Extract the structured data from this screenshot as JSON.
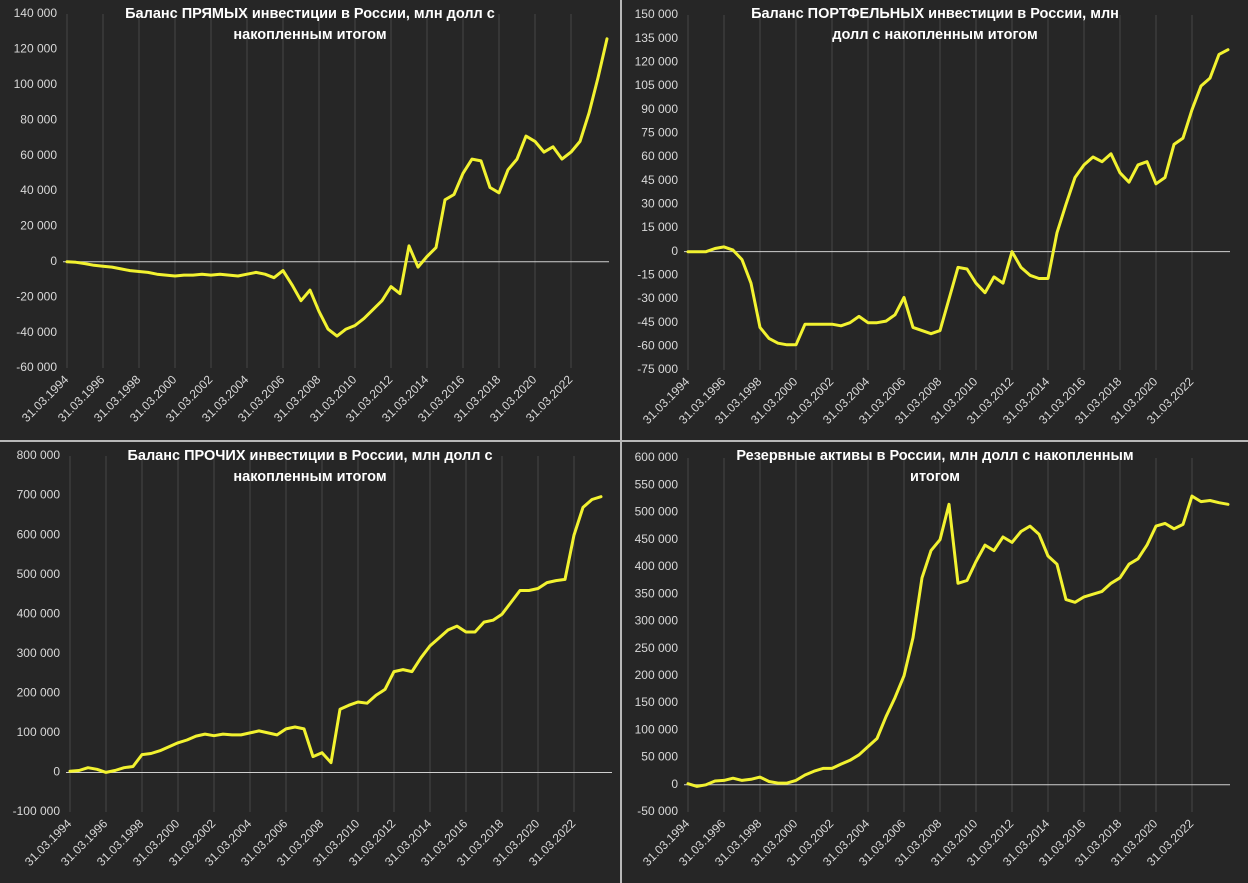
{
  "chart_data": [
    {
      "type": "line",
      "title": "Баланс ПРЯМЫХ инвестиции в России, млн долл с накопленным итогом",
      "color": "#f2f230",
      "xgrid": true,
      "categories": [
        "31.03.1994",
        null,
        null,
        null,
        "31.03.1996",
        null,
        null,
        null,
        "31.03.1998",
        null,
        null,
        null,
        "31.03.2000",
        null,
        null,
        null,
        "31.03.2002",
        null,
        null,
        null,
        "31.03.2004",
        null,
        null,
        null,
        "31.03.2006",
        null,
        null,
        null,
        "31.03.2008",
        null,
        null,
        null,
        "31.03.2010",
        null,
        null,
        null,
        "31.03.2012",
        null,
        null,
        null,
        "31.03.2014",
        null,
        null,
        null,
        "31.03.2016",
        null,
        null,
        null,
        "31.03.2018",
        null,
        null,
        null,
        "31.03.2020",
        null,
        null,
        null,
        "31.03.2022",
        null,
        null,
        null,
        null
      ],
      "values": [
        0,
        -300,
        -1000,
        -2000,
        -2500,
        -3000,
        -4000,
        -5000,
        -5500,
        -6000,
        -7000,
        -7500,
        -8000,
        -7500,
        -7500,
        -7000,
        -7500,
        -7000,
        -7500,
        -8000,
        -7000,
        -6000,
        -7000,
        -9000,
        -5000,
        -13000,
        -22000,
        -16000,
        -28000,
        -38000,
        -42000,
        -38000,
        -36000,
        -32000,
        -27000,
        -22000,
        -14000,
        -18000,
        9000,
        -3000,
        3000,
        8000,
        35000,
        38000,
        50000,
        58000,
        57000,
        42000,
        39000,
        52000,
        58000,
        71000,
        68000,
        62000,
        65000,
        58000,
        62000,
        68000,
        84000,
        104000,
        126000
      ],
      "ylim": [
        -60000,
        140000
      ],
      "yticks": [
        {
          "value": -60000,
          "label": "-60 000"
        },
        {
          "value": -40000,
          "label": "-40 000"
        },
        {
          "value": -20000,
          "label": "-20 000"
        },
        0,
        {
          "value": 20000,
          "label": "20 000"
        },
        {
          "value": 40000,
          "label": "40 000"
        },
        {
          "value": 60000,
          "label": "60 000"
        },
        {
          "value": 80000,
          "label": "80 000"
        },
        {
          "value": 100000,
          "label": "100 000"
        },
        {
          "value": 120000,
          "label": "120 000"
        },
        {
          "value": 140000,
          "label": "140 000"
        }
      ]
    },
    {
      "type": "line",
      "title": "Баланс ПОРТФЕЛЬНЫХ инвестиции в России, млн долл с накопленным итогом",
      "color": "#f2f230",
      "xgrid": true,
      "categories": [
        "31.03.1994",
        null,
        null,
        null,
        "31.03.1996",
        null,
        null,
        null,
        "31.03.1998",
        null,
        null,
        null,
        "31.03.2000",
        null,
        null,
        null,
        "31.03.2002",
        null,
        null,
        null,
        "31.03.2004",
        null,
        null,
        null,
        "31.03.2006",
        null,
        null,
        null,
        "31.03.2008",
        null,
        null,
        null,
        "31.03.2010",
        null,
        null,
        null,
        "31.03.2012",
        null,
        null,
        null,
        "31.03.2014",
        null,
        null,
        null,
        "31.03.2016",
        null,
        null,
        null,
        "31.03.2018",
        null,
        null,
        null,
        "31.03.2020",
        null,
        null,
        null,
        "31.03.2022",
        null,
        null,
        null,
        null
      ],
      "values": [
        0,
        0,
        0,
        2000,
        3000,
        1000,
        -5000,
        -20000,
        -48000,
        -55000,
        -58000,
        -59000,
        -59000,
        -46000,
        -46000,
        -46000,
        -46000,
        -47000,
        -45000,
        -41000,
        -45000,
        -45000,
        -44000,
        -40000,
        -29000,
        -48000,
        -50000,
        -52000,
        -50000,
        -30000,
        -10000,
        -11000,
        -20000,
        -26000,
        -16000,
        -20000,
        0,
        -10000,
        -15000,
        -17000,
        -17000,
        12000,
        30000,
        47000,
        55000,
        60000,
        57000,
        62000,
        50000,
        44000,
        55000,
        57000,
        43000,
        47000,
        68000,
        72000,
        90000,
        105000,
        110000,
        125000,
        128000
      ],
      "ylim": [
        -75000,
        150000
      ],
      "yticks": [
        {
          "value": -75000,
          "label": "-75 000"
        },
        {
          "value": -60000,
          "label": "-60 000"
        },
        {
          "value": -45000,
          "label": "-45 000"
        },
        {
          "value": -30000,
          "label": "-30 000"
        },
        {
          "value": -15000,
          "label": "-15 000"
        },
        0,
        {
          "value": 15000,
          "label": "15 000"
        },
        {
          "value": 30000,
          "label": "30 000"
        },
        {
          "value": 45000,
          "label": "45 000"
        },
        {
          "value": 60000,
          "label": "60 000"
        },
        {
          "value": 75000,
          "label": "75 000"
        },
        {
          "value": 90000,
          "label": "90 000"
        },
        {
          "value": 105000,
          "label": "105 000"
        },
        {
          "value": 120000,
          "label": "120 000"
        },
        {
          "value": 135000,
          "label": "135 000"
        },
        {
          "value": 150000,
          "label": "150 000"
        }
      ]
    },
    {
      "type": "line",
      "title": "Баланс ПРОЧИХ инвестиции в России, млн долл с накопленным итогом",
      "color": "#f2f230",
      "xgrid": true,
      "categories": [
        "31.03.1994",
        null,
        null,
        null,
        "31.03.1996",
        null,
        null,
        null,
        "31.03.1998",
        null,
        null,
        null,
        "31.03.2000",
        null,
        null,
        null,
        "31.03.2002",
        null,
        null,
        null,
        "31.03.2004",
        null,
        null,
        null,
        "31.03.2006",
        null,
        null,
        null,
        "31.03.2008",
        null,
        null,
        null,
        "31.03.2010",
        null,
        null,
        null,
        "31.03.2012",
        null,
        null,
        null,
        "31.03.2014",
        null,
        null,
        null,
        "31.03.2016",
        null,
        null,
        null,
        "31.03.2018",
        null,
        null,
        null,
        "31.03.2020",
        null,
        null,
        null,
        "31.03.2022",
        null,
        null,
        null,
        null
      ],
      "values": [
        3000,
        5000,
        12000,
        8000,
        0,
        5000,
        12000,
        15000,
        45000,
        48000,
        55000,
        65000,
        75000,
        82000,
        92000,
        97000,
        93000,
        97000,
        95000,
        95000,
        100000,
        105000,
        100000,
        95000,
        110000,
        115000,
        110000,
        40000,
        50000,
        25000,
        160000,
        170000,
        178000,
        175000,
        195000,
        210000,
        255000,
        260000,
        255000,
        290000,
        320000,
        340000,
        360000,
        370000,
        355000,
        355000,
        380000,
        385000,
        400000,
        430000,
        460000,
        460000,
        465000,
        480000,
        485000,
        488000,
        600000,
        670000,
        690000,
        697000,
        null
      ],
      "ylim": [
        -100000,
        800000
      ],
      "yticks": [
        {
          "value": -100000,
          "label": "-100 000"
        },
        0,
        {
          "value": 100000,
          "label": "100 000"
        },
        {
          "value": 200000,
          "label": "200 000"
        },
        {
          "value": 300000,
          "label": "300 000"
        },
        {
          "value": 400000,
          "label": "400 000"
        },
        {
          "value": 500000,
          "label": "500 000"
        },
        {
          "value": 600000,
          "label": "600 000"
        },
        {
          "value": 700000,
          "label": "700 000"
        },
        {
          "value": 800000,
          "label": "800 000"
        }
      ]
    },
    {
      "type": "line",
      "title": "Резервные активы в России, млн долл с накопленным итогом",
      "color": "#f2f230",
      "xgrid": true,
      "categories": [
        "31.03.1994",
        null,
        null,
        null,
        "31.03.1996",
        null,
        null,
        null,
        "31.03.1998",
        null,
        null,
        null,
        "31.03.2000",
        null,
        null,
        null,
        "31.03.2002",
        null,
        null,
        null,
        "31.03.2004",
        null,
        null,
        null,
        "31.03.2006",
        null,
        null,
        null,
        "31.03.2008",
        null,
        null,
        null,
        "31.03.2010",
        null,
        null,
        null,
        "31.03.2012",
        null,
        null,
        null,
        "31.03.2014",
        null,
        null,
        null,
        "31.03.2016",
        null,
        null,
        null,
        "31.03.2018",
        null,
        null,
        null,
        "31.03.2020",
        null,
        null,
        null,
        "31.03.2022",
        null,
        null,
        null,
        null
      ],
      "values": [
        2000,
        -3000,
        0,
        7000,
        8000,
        12000,
        8000,
        10000,
        14000,
        6000,
        3000,
        3000,
        8000,
        18000,
        25000,
        30000,
        30000,
        38000,
        45000,
        55000,
        70000,
        85000,
        125000,
        160000,
        200000,
        270000,
        380000,
        430000,
        450000,
        515000,
        370000,
        375000,
        410000,
        440000,
        430000,
        455000,
        445000,
        465000,
        475000,
        460000,
        420000,
        405000,
        340000,
        335000,
        345000,
        350000,
        355000,
        370000,
        380000,
        405000,
        415000,
        440000,
        475000,
        480000,
        470000,
        478000,
        530000,
        520000,
        522000,
        518000,
        515000
      ],
      "ylim": [
        -50000,
        600000
      ],
      "yticks": [
        {
          "value": -50000,
          "label": "-50 000"
        },
        0,
        {
          "value": 50000,
          "label": "50 000"
        },
        {
          "value": 100000,
          "label": "100 000"
        },
        {
          "value": 150000,
          "label": "150 000"
        },
        {
          "value": 200000,
          "label": "200 000"
        },
        {
          "value": 250000,
          "label": "250 000"
        },
        {
          "value": 300000,
          "label": "300 000"
        },
        {
          "value": 350000,
          "label": "350 000"
        },
        {
          "value": 400000,
          "label": "400 000"
        },
        {
          "value": 450000,
          "label": "450 000"
        },
        {
          "value": 500000,
          "label": "500 000"
        },
        {
          "value": 550000,
          "label": "550 000"
        },
        {
          "value": 600000,
          "label": "600 000"
        }
      ]
    }
  ]
}
